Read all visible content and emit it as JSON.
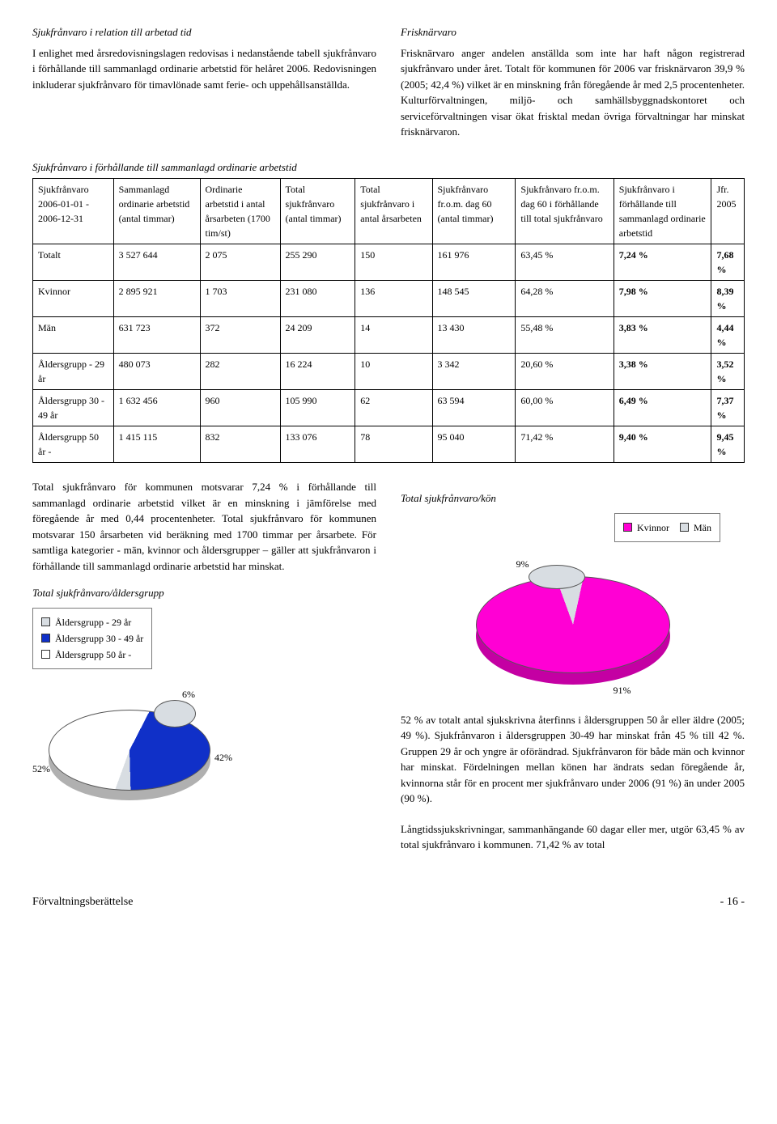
{
  "top_left": {
    "title": "Sjukfrånvaro i relation till arbetad tid",
    "p1": "I enlighet med årsredovisningslagen redovisas i nedanstående tabell sjukfrånvaro i förhållande till sammanlagd ordinarie arbetstid för helåret 2006. Redovisningen inkluderar sjukfrånvaro för timavlönade samt ferie- och uppehållsanställda."
  },
  "top_right": {
    "title": "Frisknärvaro",
    "p1": "Frisknärvaro anger andelen anställda som inte har haft någon registrerad sjukfrånvaro under året. Totalt för kommunen för 2006 var frisknärvaron 39,9 % (2005; 42,4 %) vilket är en minskning från föregående år med 2,5 procentenheter. Kulturförvaltningen, miljö- och samhällsbyggnadskontoret och serviceförvaltningen visar ökat frisktal medan övriga förvaltningar har minskat frisknärvaron."
  },
  "table": {
    "caption": "Sjukfrånvaro i förhållande till sammanlagd ordinarie arbetstid",
    "headers": [
      "Sjukfrånvaro 2006-01-01 - 2006-12-31",
      "Sammanlagd ordinarie arbetstid (antal timmar)",
      "Ordinarie arbetstid i antal årsarbeten (1700 tim/st)",
      "Total sjukfrånvaro (antal timmar)",
      "Total sjukfrånvaro i antal årsarbeten",
      "Sjukfrånvaro fr.o.m. dag 60 (antal timmar)",
      "Sjukfrånvaro fr.o.m. dag 60 i förhållande till total sjukfrånvaro",
      "Sjukfrånvaro i förhållande till sammanlagd ordinarie arbetstid",
      "Jfr. 2005"
    ],
    "rows": [
      [
        "Totalt",
        "3 527 644",
        "2 075",
        "255 290",
        "150",
        "161 976",
        "63,45 %",
        "7,24 %",
        "7,68 %"
      ],
      [
        "Kvinnor",
        "2 895 921",
        "1 703",
        "231 080",
        "136",
        "148 545",
        "64,28 %",
        "7,98 %",
        "8,39 %"
      ],
      [
        "Män",
        "631 723",
        "372",
        "24 209",
        "14",
        "13 430",
        "55,48 %",
        "3,83 %",
        "4,44 %"
      ],
      [
        "Åldersgrupp - 29 år",
        "480 073",
        "282",
        "16 224",
        "10",
        "3 342",
        "20,60 %",
        "3,38 %",
        "3,52 %"
      ],
      [
        "Åldersgrupp 30 - 49 år",
        "1 632 456",
        "960",
        "105 990",
        "62",
        "63 594",
        "60,00 %",
        "6,49 %",
        "7,37 %"
      ],
      [
        "Åldersgrupp 50 år -",
        "1 415 115",
        "832",
        "133 076",
        "78",
        "95 040",
        "71,42 %",
        "9,40 %",
        "9,45 %"
      ]
    ]
  },
  "mid_left": {
    "p1": "Total sjukfrånvaro för kommunen motsvarar 7,24 % i förhållande till sammanlagd ordinarie arbetstid vilket är en minskning i jämförelse med föregående år med 0,44 procentenheter. Total sjukfrånvaro för kommunen motsvarar 150 årsarbeten vid beräkning med 1700 timmar per årsarbete. För samtliga kategorier - män, kvinnor och åldersgrupper – gäller att sjukfrånvaron i förhållande till sammanlagd ordinarie arbetstid har minskat."
  },
  "chart_age": {
    "title": "Total sjukfrånvaro/åldersgrupp",
    "legend": [
      {
        "label": "Åldersgrupp - 29 år",
        "color": "#d8dde2"
      },
      {
        "label": "Åldersgrupp 30 - 49 år",
        "color": "#1030c8"
      },
      {
        "label": "Åldersgrupp 50 år -",
        "color": "#ffffff"
      }
    ],
    "labels": {
      "a": "6%",
      "b": "42%",
      "c": "52%"
    },
    "background_color": "#ffffff"
  },
  "chart_gender": {
    "title": "Total sjukfrånvaro/kön",
    "legend": [
      {
        "label": "Kvinnor",
        "color": "#ff00d4"
      },
      {
        "label": "Män",
        "color": "#d8dde2"
      }
    ],
    "labels": {
      "a": "9%",
      "b": "91%"
    },
    "background_color": "#ffffff"
  },
  "mid_right": {
    "p1": "52 % av totalt antal sjukskrivna återfinns i åldersgruppen 50 år eller äldre (2005; 49 %). Sjukfrånvaron i åldersgruppen 30-49 har minskat från 45 % till 42 %. Gruppen 29 år och yngre är oförändrad. Sjukfrånvaron för både män och kvinnor har minskat. Fördelningen mellan könen har ändrats sedan föregående år, kvinnorna står för en procent mer sjukfrånvaro under 2006 (91 %) än under 2005 (90 %).",
    "p2": "Långtidssjukskrivningar, sammanhängande 60 dagar eller mer, utgör 63,45 % av total sjukfrånvaro i kommunen. 71,42 % av total"
  },
  "footer": {
    "left": "Förvaltningsberättelse",
    "right": "- 16 -"
  },
  "colors": {
    "magenta": "#ff00d4",
    "grey": "#d8dde2",
    "blue": "#1030c8",
    "white": "#ffffff",
    "border": "#606060"
  }
}
